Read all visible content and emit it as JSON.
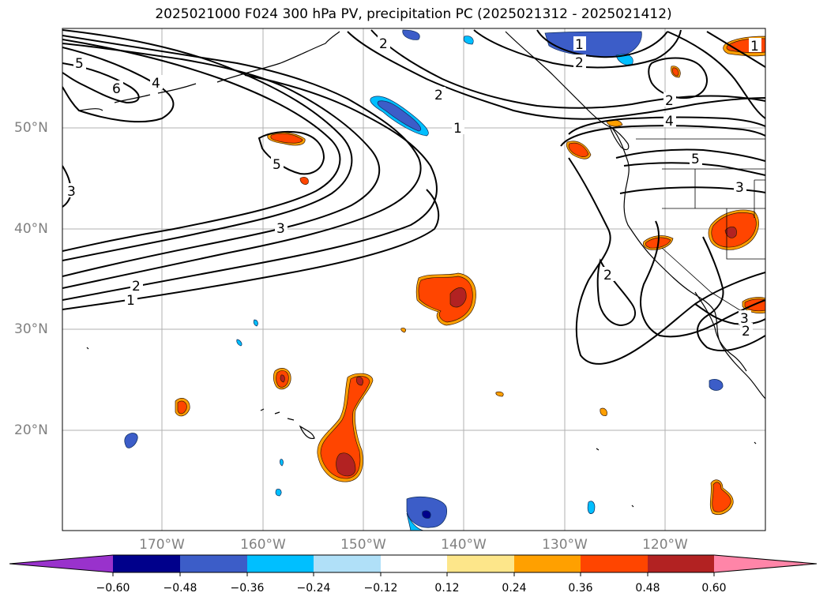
{
  "title": "2025021000 F024 300 hPa PV, precipitation PC (2025021312 - 2025021412)",
  "lat_labels": [
    "50°N",
    "40°N",
    "30°N",
    "20°N"
  ],
  "lon_labels": [
    "170°W",
    "160°W",
    "150°W",
    "140°W",
    "130°W",
    "120°W"
  ],
  "contour_labels": [
    "5",
    "6",
    "4",
    "3",
    "2",
    "1",
    "2",
    "1",
    "5",
    "3",
    "2",
    "1",
    "1",
    "2",
    "2",
    "4",
    "5",
    "3",
    "2",
    "3",
    "2",
    "4"
  ],
  "colorbar": {
    "ticks": [
      "−0.60",
      "−0.48",
      "−0.36",
      "−0.24",
      "−0.12",
      "0.12",
      "0.24",
      "0.36",
      "0.48",
      "0.60"
    ],
    "colors": [
      "#9932cc",
      "#00008b",
      "#3c5dc8",
      "#00bfff",
      "#b0e0f8",
      "#ffffff",
      "#fde68a",
      "#ffa000",
      "#ff4500",
      "#b22222",
      "#ff85a8"
    ]
  }
}
